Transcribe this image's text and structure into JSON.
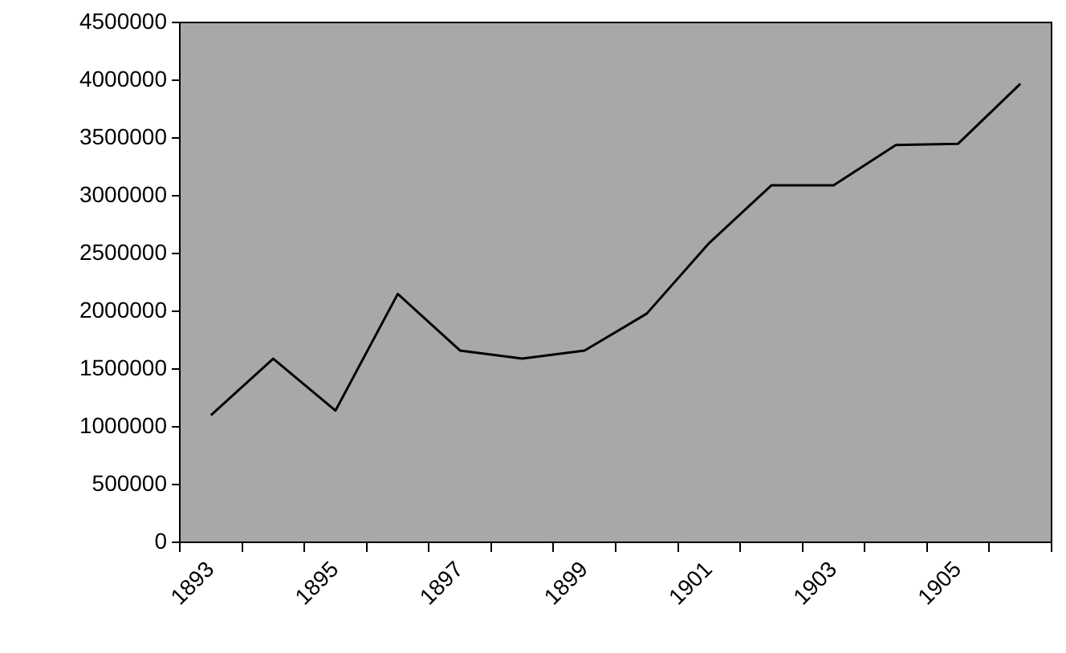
{
  "chart_data": {
    "type": "line",
    "categories": [
      "1893",
      null,
      "1895",
      null,
      "1897",
      null,
      "1899",
      null,
      "1901",
      null,
      "1903",
      null,
      "1905",
      null
    ],
    "values": [
      1100000,
      1590000,
      1140000,
      2150000,
      1660000,
      1590000,
      1660000,
      1980000,
      2590000,
      3090000,
      3090000,
      3440000,
      3450000,
      3970000
    ],
    "color": "#000000",
    "marker": "none",
    "line_style": "solid",
    "ylim": [
      0,
      4500000
    ],
    "yticks": [
      0,
      500000,
      1000000,
      1500000,
      2000000,
      2500000,
      3000000,
      3500000,
      4000000,
      4500000
    ]
  }
}
